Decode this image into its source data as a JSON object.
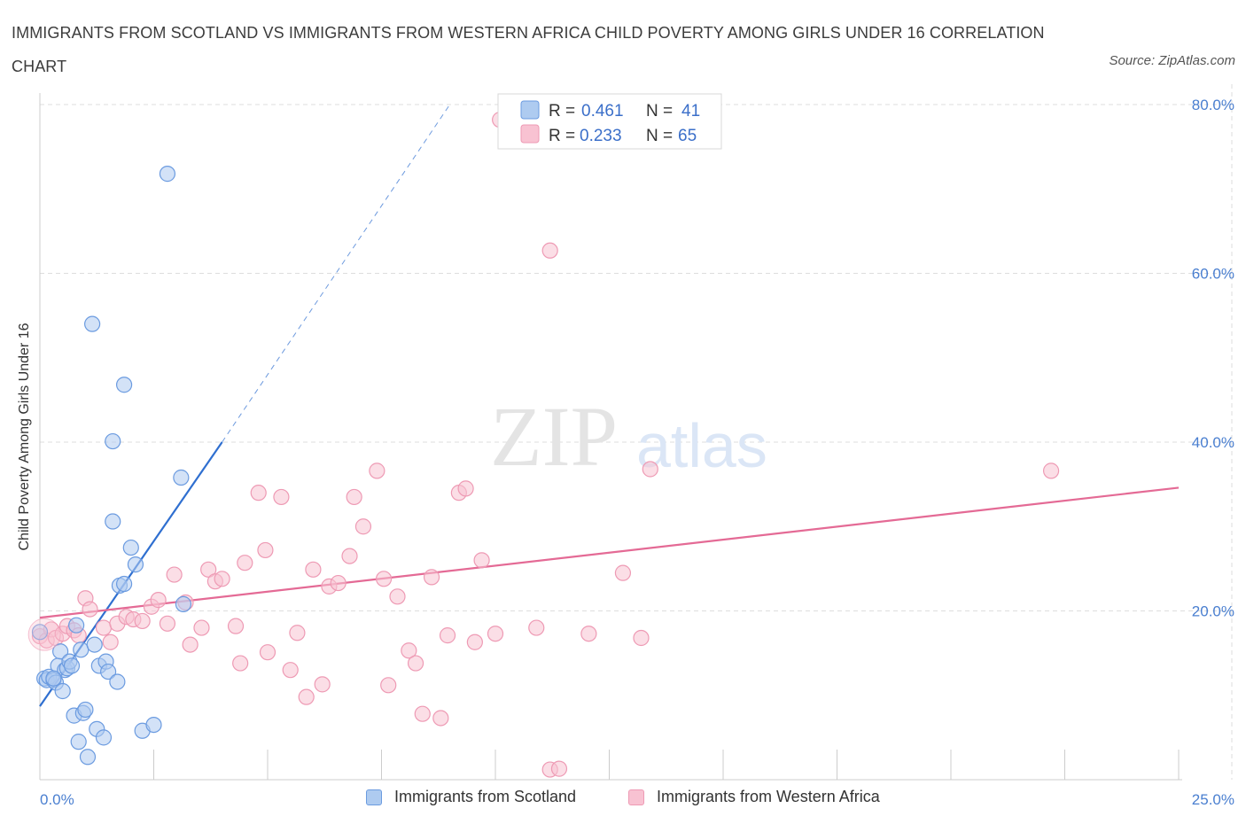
{
  "title": "IMMIGRANTS FROM SCOTLAND VS IMMIGRANTS FROM WESTERN AFRICA CHILD POVERTY AMONG GIRLS UNDER 16 CORRELATION CHART",
  "source": "Source: ZipAtlas.com",
  "watermark": {
    "zip": "ZIP",
    "atlas": "atlas"
  },
  "legend_box": {
    "series1": {
      "r_label": "R =",
      "r_value": "0.461",
      "n_label": "N =",
      "n_value": "41"
    },
    "series2": {
      "r_label": "R =",
      "r_value": "0.233",
      "n_label": "N =",
      "n_value": "65"
    }
  },
  "bottom_legend": [
    "Immigrants from Scotland",
    "Immigrants from Western Africa"
  ],
  "colors": {
    "scotland_fill": "#aecbf0",
    "scotland_stroke": "#6b9be0",
    "scotland_line": "#2f6fd0",
    "wafrica_fill": "#f8c2d2",
    "wafrica_stroke": "#ee9ab4",
    "wafrica_line": "#e46a95",
    "tick_label": "#4a7fd0",
    "grid": "#dddddd"
  },
  "chart_data": {
    "type": "scatter",
    "title": "IMMIGRANTS FROM SCOTLAND VS IMMIGRANTS FROM WESTERN AFRICA CHILD POVERTY AMONG GIRLS UNDER 16 CORRELATION CHART",
    "xlabel": "",
    "ylabel": "Child Poverty Among Girls Under 16",
    "xlim": [
      0,
      25
    ],
    "ylim": [
      0,
      80
    ],
    "x_tick_labels": [
      "0.0%",
      "25.0%"
    ],
    "y_ticks": [
      20,
      40,
      60,
      80
    ],
    "y_tick_labels": [
      "20.0%",
      "40.0%",
      "60.0%",
      "80.0%"
    ],
    "grid": true,
    "legend": "top-center",
    "series": [
      {
        "name": "Immigrants from Scotland",
        "R": 0.461,
        "N": 41,
        "trend": {
          "x0": 0,
          "y0": 8.7,
          "x1": 4.0,
          "y1": 40.0,
          "x_dash_end": 9.0,
          "y_dash_end": 80.0
        },
        "points": [
          [
            0.0,
            17.5
          ],
          [
            0.1,
            12.0
          ],
          [
            0.15,
            11.8
          ],
          [
            0.2,
            12.2
          ],
          [
            0.3,
            11.8
          ],
          [
            0.35,
            11.5
          ],
          [
            0.4,
            13.5
          ],
          [
            0.45,
            15.2
          ],
          [
            0.5,
            10.5
          ],
          [
            0.55,
            13.0
          ],
          [
            0.6,
            13.2
          ],
          [
            0.65,
            14.0
          ],
          [
            0.7,
            13.5
          ],
          [
            0.75,
            7.6
          ],
          [
            0.8,
            18.3
          ],
          [
            0.85,
            4.5
          ],
          [
            0.9,
            15.4
          ],
          [
            0.95,
            7.9
          ],
          [
            1.0,
            8.3
          ],
          [
            1.05,
            2.7
          ],
          [
            1.2,
            16.0
          ],
          [
            1.25,
            6.0
          ],
          [
            1.3,
            13.5
          ],
          [
            1.4,
            5.0
          ],
          [
            1.45,
            14.0
          ],
          [
            1.5,
            12.8
          ],
          [
            1.7,
            11.6
          ],
          [
            1.75,
            23.0
          ],
          [
            1.85,
            23.2
          ],
          [
            2.0,
            27.5
          ],
          [
            2.1,
            25.5
          ],
          [
            2.25,
            5.8
          ],
          [
            2.5,
            6.5
          ],
          [
            2.8,
            71.8
          ],
          [
            3.1,
            35.8
          ],
          [
            3.15,
            20.8
          ],
          [
            1.15,
            54.0
          ],
          [
            1.85,
            46.8
          ],
          [
            1.6,
            40.1
          ],
          [
            1.6,
            30.6
          ],
          [
            0.3,
            12.0
          ]
        ]
      },
      {
        "name": "Immigrants from Western Africa",
        "R": 0.233,
        "N": 65,
        "trend": {
          "x0": 0,
          "y0": 19.2,
          "x1": 25,
          "y1": 34.6
        },
        "points": [
          [
            0.0,
            17.0
          ],
          [
            0.15,
            16.5
          ],
          [
            0.25,
            17.8
          ],
          [
            0.35,
            16.8
          ],
          [
            0.5,
            17.3
          ],
          [
            0.6,
            18.2
          ],
          [
            0.75,
            17.7
          ],
          [
            0.85,
            17.1
          ],
          [
            1.0,
            21.5
          ],
          [
            1.1,
            20.2
          ],
          [
            1.4,
            18.0
          ],
          [
            1.55,
            16.3
          ],
          [
            1.7,
            18.5
          ],
          [
            1.9,
            19.3
          ],
          [
            2.05,
            19.0
          ],
          [
            2.25,
            18.8
          ],
          [
            2.45,
            20.5
          ],
          [
            2.6,
            21.3
          ],
          [
            2.8,
            18.5
          ],
          [
            2.95,
            24.3
          ],
          [
            3.2,
            21.0
          ],
          [
            3.3,
            16.0
          ],
          [
            3.55,
            18.0
          ],
          [
            3.7,
            24.9
          ],
          [
            3.85,
            23.5
          ],
          [
            4.0,
            23.8
          ],
          [
            4.3,
            18.2
          ],
          [
            4.4,
            13.8
          ],
          [
            4.5,
            25.7
          ],
          [
            4.8,
            34.0
          ],
          [
            4.95,
            27.2
          ],
          [
            5.0,
            15.1
          ],
          [
            5.3,
            33.5
          ],
          [
            5.5,
            13.0
          ],
          [
            5.65,
            17.4
          ],
          [
            5.85,
            9.8
          ],
          [
            6.0,
            24.9
          ],
          [
            6.2,
            11.3
          ],
          [
            6.35,
            22.9
          ],
          [
            6.55,
            23.3
          ],
          [
            6.8,
            26.5
          ],
          [
            6.9,
            33.5
          ],
          [
            7.1,
            30.0
          ],
          [
            7.4,
            36.6
          ],
          [
            7.55,
            23.8
          ],
          [
            7.65,
            11.2
          ],
          [
            7.85,
            21.7
          ],
          [
            8.1,
            15.3
          ],
          [
            8.25,
            13.8
          ],
          [
            8.4,
            7.8
          ],
          [
            8.6,
            24.0
          ],
          [
            8.8,
            7.3
          ],
          [
            8.95,
            17.1
          ],
          [
            9.2,
            34.0
          ],
          [
            9.35,
            34.5
          ],
          [
            9.55,
            16.3
          ],
          [
            9.7,
            26.0
          ],
          [
            10.0,
            17.3
          ],
          [
            10.1,
            78.2
          ],
          [
            10.9,
            18.0
          ],
          [
            11.2,
            1.2
          ],
          [
            11.4,
            1.3
          ],
          [
            11.2,
            62.7
          ],
          [
            12.05,
            17.3
          ],
          [
            12.8,
            24.5
          ]
        ]
      }
    ],
    "extra_points_wafrica": [
      [
        13.2,
        16.8
      ],
      [
        13.4,
        36.8
      ],
      [
        22.2,
        36.6
      ]
    ]
  }
}
